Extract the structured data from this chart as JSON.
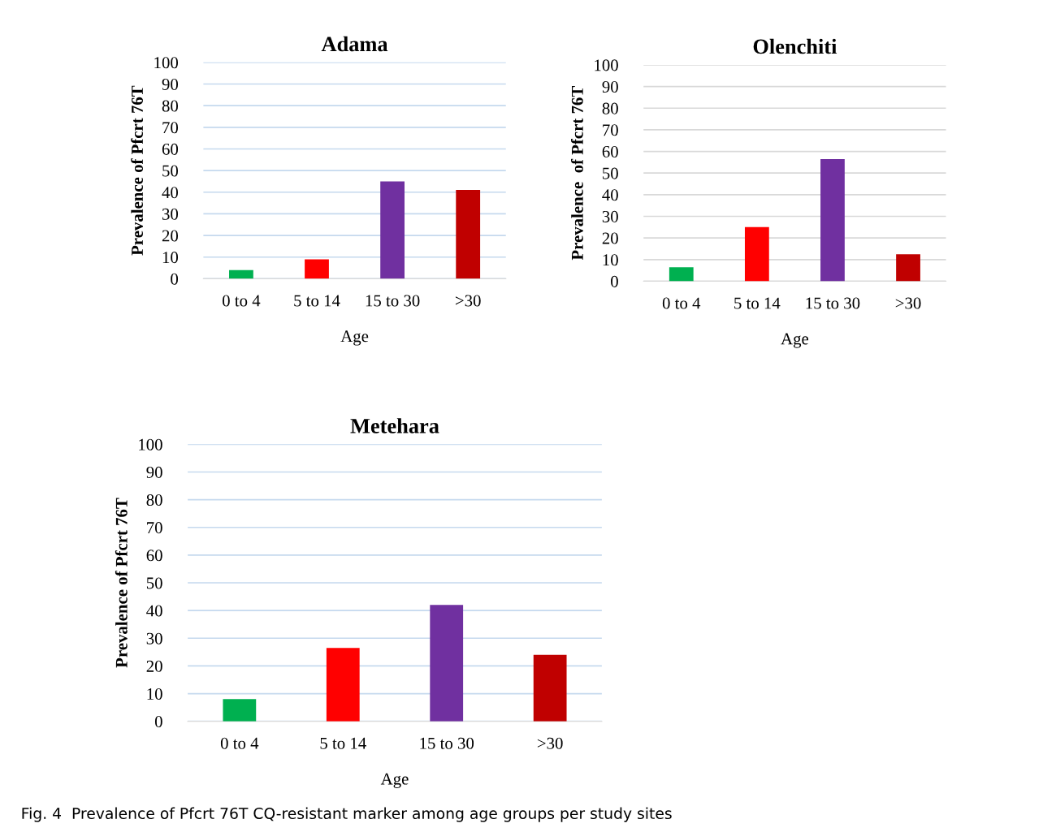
{
  "chart_data": [
    {
      "type": "bar",
      "title": "Adama",
      "xlabel": "Age",
      "ylabel": "Prevalence of Pfcrt 76T",
      "categories": [
        "0 to 4",
        "5 to 14",
        "15 to 30",
        ">30"
      ],
      "values": [
        4,
        9,
        45,
        41
      ],
      "colors": [
        "#00b050",
        "#ff0000",
        "#7030a0",
        "#c00000"
      ],
      "ylim": [
        0,
        100
      ],
      "yticks": [
        0,
        10,
        20,
        30,
        40,
        50,
        60,
        70,
        80,
        90,
        100
      ],
      "grid": "y"
    },
    {
      "type": "bar",
      "title": "Olenchiti",
      "xlabel": "Age",
      "ylabel": "Prevalence  of Pfcrt 76T",
      "categories": [
        "0 to 4",
        "5 to 14",
        "15 to 30",
        ">30"
      ],
      "values": [
        6.5,
        25,
        56.5,
        12.5
      ],
      "colors": [
        "#00b050",
        "#ff0000",
        "#7030a0",
        "#c00000"
      ],
      "ylim": [
        0,
        100
      ],
      "yticks": [
        0,
        10,
        20,
        30,
        40,
        50,
        60,
        70,
        80,
        90,
        100
      ],
      "grid": "y"
    },
    {
      "type": "bar",
      "title": "Metehara",
      "xlabel": "Age",
      "ylabel": "Prevalence of Pfcrt 76T",
      "categories": [
        "0 to 4",
        "5 to 14",
        "15 to 30",
        ">30"
      ],
      "values": [
        8,
        26.5,
        42,
        24
      ],
      "colors": [
        "#00b050",
        "#ff0000",
        "#7030a0",
        "#c00000"
      ],
      "ylim": [
        0,
        100
      ],
      "yticks": [
        0,
        10,
        20,
        30,
        40,
        50,
        60,
        70,
        80,
        90,
        100
      ],
      "grid": "y",
      "annotations": [
        "Fig. 4  Prevalence of Pfcrt 76T CQ-resistant marker among age groups per study sites"
      ]
    }
  ]
}
